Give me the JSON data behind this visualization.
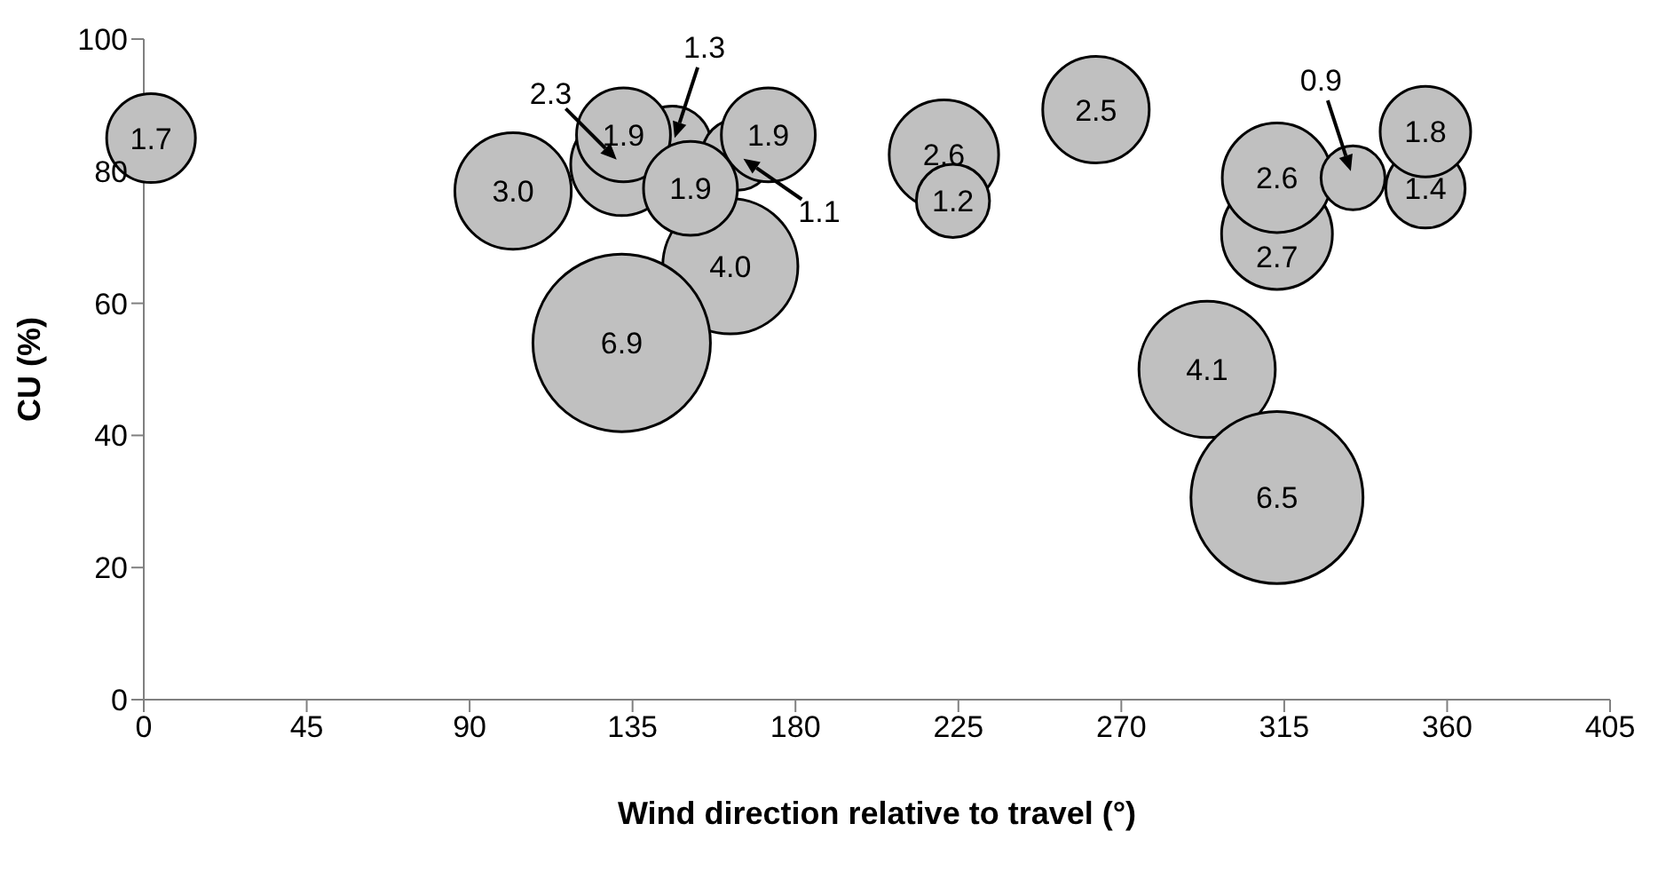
{
  "chart_data": {
    "type": "bubble",
    "xlabel": "Wind direction relative to travel (°)",
    "ylabel": "CU (%)",
    "xlim": [
      0,
      405
    ],
    "xticks": [
      0,
      45,
      90,
      135,
      180,
      225,
      270,
      315,
      360,
      405
    ],
    "ylim": [
      0,
      100
    ],
    "yticks": [
      0,
      20,
      40,
      60,
      80,
      100
    ],
    "grid": false,
    "legend": false,
    "color": "#c0c0c0",
    "x": [
      2,
      162,
      132,
      102,
      132,
      146,
      164,
      172.5,
      132.5,
      151,
      221,
      223.5,
      263,
      293.7,
      313,
      313,
      313,
      334,
      354,
      354
    ],
    "values": [
      85,
      65.6,
      54,
      77,
      81,
      84,
      82.5,
      85.5,
      85.5,
      77.4,
      82.5,
      75.5,
      89.3,
      50,
      30.6,
      70.5,
      79,
      79,
      77.4,
      86
    ],
    "sizes": [
      0.25,
      0.58,
      1,
      0.43,
      0.33,
      0.19,
      0.16,
      0.28,
      0.28,
      0.28,
      0.38,
      0.17,
      0.36,
      0.59,
      0.94,
      0.39,
      0.38,
      0.13,
      0.2,
      0.26
    ],
    "annotations": [
      {
        "text": "1.7",
        "x": 2,
        "y": 85
      },
      {
        "text": "4.0",
        "x": 162,
        "y": 65.6
      },
      {
        "text": "6.9",
        "x": 132,
        "y": 54
      },
      {
        "text": "3.0",
        "x": 102,
        "y": 77
      },
      {
        "text": "2.3",
        "x": 132,
        "y": 81
      },
      {
        "text": "1.3",
        "x": 146,
        "y": 84
      },
      {
        "text": "1.1",
        "x": 164,
        "y": 82.5
      },
      {
        "text": "1.9",
        "x": 172.5,
        "y": 85.5
      },
      {
        "text": "1.9",
        "x": 132.5,
        "y": 85.5
      },
      {
        "text": "1.9",
        "x": 151,
        "y": 77.4
      },
      {
        "text": "2.6",
        "x": 221,
        "y": 82.5
      },
      {
        "text": "1.2",
        "x": 223.5,
        "y": 75.5
      },
      {
        "text": "2.5",
        "x": 263,
        "y": 89.3
      },
      {
        "text": "4.1",
        "x": 293.7,
        "y": 50
      },
      {
        "text": "6.5",
        "x": 313,
        "y": 30.6
      },
      {
        "text": "2.7",
        "x": 313,
        "y": 70.5
      },
      {
        "text": "2.6",
        "x": 313,
        "y": 79
      },
      {
        "text": "0.9",
        "x": 334,
        "y": 79
      },
      {
        "text": "1.4",
        "x": 354,
        "y": 77.4
      },
      {
        "text": "1.8",
        "x": 354,
        "y": 86
      }
    ]
  }
}
